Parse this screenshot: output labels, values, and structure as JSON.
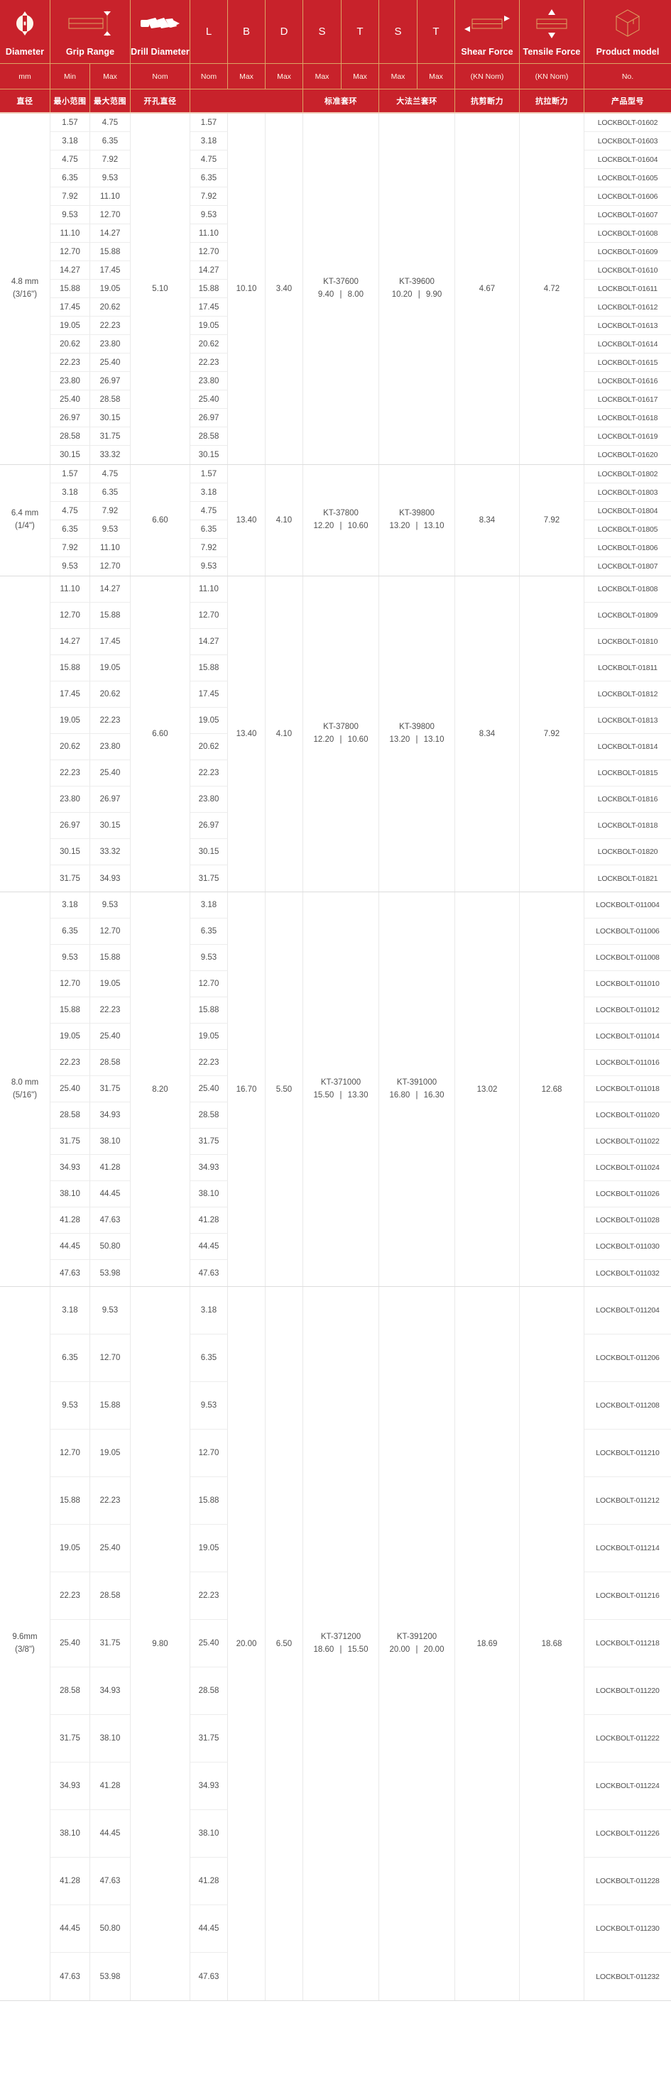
{
  "colors": {
    "header_red": "#c8222b",
    "gold_line": "#dca463",
    "grid_line": "#e9e9e9",
    "body_text": "#4f4f4f"
  },
  "header": {
    "row1": [
      {
        "label": "Diameter",
        "icon": "diameter-icon"
      },
      {
        "label": "Grip Range",
        "icon": "grip-range-icon"
      },
      {
        "label": "Drill Diameter",
        "icon": "drill-icon"
      },
      {
        "label": "L"
      },
      {
        "label": "B"
      },
      {
        "label": "D"
      },
      {
        "label": "S"
      },
      {
        "label": "T"
      },
      {
        "label": "S"
      },
      {
        "label": "T"
      },
      {
        "label": "Shear Force",
        "icon": "shear-force-icon"
      },
      {
        "label": "Tensile Force",
        "icon": "tensile-force-icon"
      },
      {
        "label": "Product model",
        "icon": "product-icon"
      }
    ],
    "row2": [
      "mm",
      "Min",
      "Max",
      "Nom",
      "Nom",
      "Max",
      "Max",
      "Max",
      "Max",
      "Max",
      "Max",
      "(KN Nom)",
      "(KN Nom)",
      "No."
    ],
    "row3": [
      "直径",
      "最小范围",
      "最大范围",
      "开孔直径",
      "",
      "标准套环",
      "大法兰套环",
      "抗剪断力",
      "抗拉断力",
      "产品型号"
    ]
  },
  "sections": [
    {
      "diameter": [
        "4.8 mm",
        "(3/16\")"
      ],
      "drill": "5.10",
      "B": "10.10",
      "D": "3.40",
      "standard_collar": [
        "KT-37600",
        "9.40 | 8.00"
      ],
      "flange_collar": [
        "KT-39600",
        "10.20 | 9.90"
      ],
      "shear": "4.67",
      "tensile": "4.72",
      "rows": [
        [
          "1.57",
          "4.75",
          "1.57",
          "LOCKBOLT-01602"
        ],
        [
          "3.18",
          "6.35",
          "3.18",
          "LOCKBOLT-01603"
        ],
        [
          "4.75",
          "7.92",
          "4.75",
          "LOCKBOLT-01604"
        ],
        [
          "6.35",
          "9.53",
          "6.35",
          "LOCKBOLT-01605"
        ],
        [
          "7.92",
          "11.10",
          "7.92",
          "LOCKBOLT-01606"
        ],
        [
          "9.53",
          "12.70",
          "9.53",
          "LOCKBOLT-01607"
        ],
        [
          "11.10",
          "14.27",
          "11.10",
          "LOCKBOLT-01608"
        ],
        [
          "12.70",
          "15.88",
          "12.70",
          "LOCKBOLT-01609"
        ],
        [
          "14.27",
          "17.45",
          "14.27",
          "LOCKBOLT-01610"
        ],
        [
          "15.88",
          "19.05",
          "15.88",
          "LOCKBOLT-01611"
        ],
        [
          "17.45",
          "20.62",
          "17.45",
          "LOCKBOLT-01612"
        ],
        [
          "19.05",
          "22.23",
          "19.05",
          "LOCKBOLT-01613"
        ],
        [
          "20.62",
          "23.80",
          "20.62",
          "LOCKBOLT-01614"
        ],
        [
          "22.23",
          "25.40",
          "22.23",
          "LOCKBOLT-01615"
        ],
        [
          "23.80",
          "26.97",
          "23.80",
          "LOCKBOLT-01616"
        ],
        [
          "25.40",
          "28.58",
          "25.40",
          "LOCKBOLT-01617"
        ],
        [
          "26.97",
          "30.15",
          "26.97",
          "LOCKBOLT-01618"
        ],
        [
          "28.58",
          "31.75",
          "28.58",
          "LOCKBOLT-01619"
        ],
        [
          "30.15",
          "33.32",
          "30.15",
          "LOCKBOLT-01620"
        ]
      ]
    },
    {
      "diameter": [
        "6.4 mm",
        "(1/4\")"
      ],
      "drill": "6.60",
      "B": "13.40",
      "D": "4.10",
      "standard_collar": [
        "KT-37800",
        "12.20 | 10.60"
      ],
      "flange_collar": [
        "KT-39800",
        "13.20 | 13.10"
      ],
      "shear": "8.34",
      "tensile": "7.92",
      "rows": [
        [
          "1.57",
          "4.75",
          "1.57",
          "LOCKBOLT-01802"
        ],
        [
          "3.18",
          "6.35",
          "3.18",
          "LOCKBOLT-01803"
        ],
        [
          "4.75",
          "7.92",
          "4.75",
          "LOCKBOLT-01804"
        ],
        [
          "6.35",
          "9.53",
          "6.35",
          "LOCKBOLT-01805"
        ],
        [
          "7.92",
          "11.10",
          "7.92",
          "LOCKBOLT-01806"
        ],
        [
          "9.53",
          "12.70",
          "9.53",
          "LOCKBOLT-01807"
        ]
      ]
    },
    {
      "diameter": [
        "",
        ""
      ],
      "drill": "6.60",
      "B": "13.40",
      "D": "4.10",
      "standard_collar": [
        "KT-37800",
        "12.20 | 10.60"
      ],
      "flange_collar": [
        "KT-39800",
        "13.20 | 13.10"
      ],
      "shear": "8.34",
      "tensile": "7.92",
      "rows": [
        [
          "11.10",
          "14.27",
          "11.10",
          "LOCKBOLT-01808"
        ],
        [
          "12.70",
          "15.88",
          "12.70",
          "LOCKBOLT-01809"
        ],
        [
          "14.27",
          "17.45",
          "14.27",
          "LOCKBOLT-01810"
        ],
        [
          "15.88",
          "19.05",
          "15.88",
          "LOCKBOLT-01811"
        ],
        [
          "17.45",
          "20.62",
          "17.45",
          "LOCKBOLT-01812"
        ],
        [
          "19.05",
          "22.23",
          "19.05",
          "LOCKBOLT-01813"
        ],
        [
          "20.62",
          "23.80",
          "20.62",
          "LOCKBOLT-01814"
        ],
        [
          "22.23",
          "25.40",
          "22.23",
          "LOCKBOLT-01815"
        ],
        [
          "23.80",
          "26.97",
          "23.80",
          "LOCKBOLT-01816"
        ],
        [
          "26.97",
          "30.15",
          "26.97",
          "LOCKBOLT-01818"
        ],
        [
          "30.15",
          "33.32",
          "30.15",
          "LOCKBOLT-01820"
        ],
        [
          "31.75",
          "34.93",
          "31.75",
          "LOCKBOLT-01821"
        ]
      ]
    },
    {
      "diameter": [
        "8.0 mm",
        "(5/16\")"
      ],
      "drill": "8.20",
      "B": "16.70",
      "D": "5.50",
      "standard_collar": [
        "KT-371000",
        "15.50 | 13.30"
      ],
      "flange_collar": [
        "KT-391000",
        "16.80 | 16.30"
      ],
      "shear": "13.02",
      "tensile": "12.68",
      "rows": [
        [
          "3.18",
          "9.53",
          "3.18",
          "LOCKBOLT-011004"
        ],
        [
          "6.35",
          "12.70",
          "6.35",
          "LOCKBOLT-011006"
        ],
        [
          "9.53",
          "15.88",
          "9.53",
          "LOCKBOLT-011008"
        ],
        [
          "12.70",
          "19.05",
          "12.70",
          "LOCKBOLT-011010"
        ],
        [
          "15.88",
          "22.23",
          "15.88",
          "LOCKBOLT-011012"
        ],
        [
          "19.05",
          "25.40",
          "19.05",
          "LOCKBOLT-011014"
        ],
        [
          "22.23",
          "28.58",
          "22.23",
          "LOCKBOLT-011016"
        ],
        [
          "25.40",
          "31.75",
          "25.40",
          "LOCKBOLT-011018"
        ],
        [
          "28.58",
          "34.93",
          "28.58",
          "LOCKBOLT-011020"
        ],
        [
          "31.75",
          "38.10",
          "31.75",
          "LOCKBOLT-011022"
        ],
        [
          "34.93",
          "41.28",
          "34.93",
          "LOCKBOLT-011024"
        ],
        [
          "38.10",
          "44.45",
          "38.10",
          "LOCKBOLT-011026"
        ],
        [
          "41.28",
          "47.63",
          "41.28",
          "LOCKBOLT-011028"
        ],
        [
          "44.45",
          "50.80",
          "44.45",
          "LOCKBOLT-011030"
        ],
        [
          "47.63",
          "53.98",
          "47.63",
          "LOCKBOLT-011032"
        ]
      ]
    },
    {
      "diameter": [
        "9.6mm",
        "(3/8\")"
      ],
      "drill": "9.80",
      "B": "20.00",
      "D": "6.50",
      "standard_collar": [
        "KT-371200",
        "18.60 | 15.50"
      ],
      "flange_collar": [
        "KT-391200",
        "20.00 | 20.00"
      ],
      "shear": "18.69",
      "tensile": "18.68",
      "rows": [
        [
          "3.18",
          "9.53",
          "3.18",
          "LOCKBOLT-011204"
        ],
        [
          "6.35",
          "12.70",
          "6.35",
          "LOCKBOLT-011206"
        ],
        [
          "9.53",
          "15.88",
          "9.53",
          "LOCKBOLT-011208"
        ],
        [
          "12.70",
          "19.05",
          "12.70",
          "LOCKBOLT-011210"
        ],
        [
          "15.88",
          "22.23",
          "15.88",
          "LOCKBOLT-011212"
        ],
        [
          "19.05",
          "25.40",
          "19.05",
          "LOCKBOLT-011214"
        ],
        [
          "22.23",
          "28.58",
          "22.23",
          "LOCKBOLT-011216"
        ],
        [
          "25.40",
          "31.75",
          "25.40",
          "LOCKBOLT-011218"
        ],
        [
          "28.58",
          "34.93",
          "28.58",
          "LOCKBOLT-011220"
        ],
        [
          "31.75",
          "38.10",
          "31.75",
          "LOCKBOLT-011222"
        ],
        [
          "34.93",
          "41.28",
          "34.93",
          "LOCKBOLT-011224"
        ],
        [
          "38.10",
          "44.45",
          "38.10",
          "LOCKBOLT-011226"
        ],
        [
          "41.28",
          "47.63",
          "41.28",
          "LOCKBOLT-011228"
        ],
        [
          "44.45",
          "50.80",
          "44.45",
          "LOCKBOLT-011230"
        ],
        [
          "47.63",
          "53.98",
          "47.63",
          "LOCKBOLT-011232"
        ]
      ]
    }
  ]
}
